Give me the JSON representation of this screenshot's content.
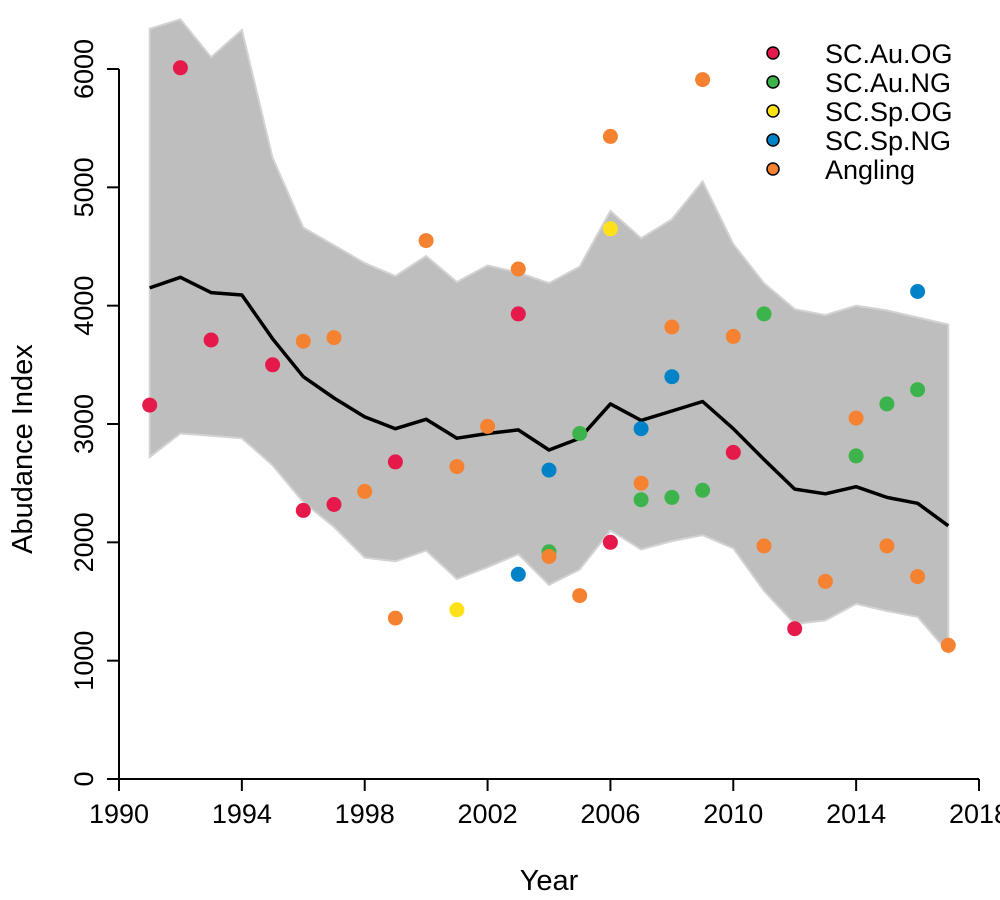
{
  "chart_data": {
    "type": "line",
    "title": "",
    "xlabel": "Year",
    "ylabel": "Abudance Index",
    "xlim": [
      1990,
      2018
    ],
    "ylim": [
      0,
      6000
    ],
    "x_ticks": [
      1990,
      1994,
      1998,
      2002,
      2006,
      2010,
      2014,
      2018
    ],
    "y_ticks": [
      0,
      1000,
      2000,
      3000,
      4000,
      5000,
      6000
    ],
    "grid": false,
    "legend_position": "top-right",
    "trend": {
      "x": [
        1991,
        1992,
        1993,
        1994,
        1995,
        1996,
        1997,
        1998,
        1999,
        2000,
        2001,
        2002,
        2003,
        2004,
        2005,
        2006,
        2007,
        2008,
        2009,
        2010,
        2011,
        2012,
        2013,
        2014,
        2015,
        2016,
        2017
      ],
      "y": [
        4150,
        4240,
        4110,
        4090,
        3720,
        3400,
        3220,
        3060,
        2960,
        3040,
        2880,
        2920,
        2950,
        2780,
        2880,
        3170,
        3030,
        3110,
        3190,
        2960,
        2700,
        2450,
        2410,
        2470,
        2380,
        2330,
        2140
      ],
      "color": "#000000"
    },
    "band": {
      "x": [
        1991,
        1992,
        1993,
        1994,
        1995,
        1996,
        1997,
        1998,
        1999,
        2000,
        2001,
        2002,
        2003,
        2004,
        2005,
        2006,
        2007,
        2008,
        2009,
        2010,
        2011,
        2012,
        2013,
        2014,
        2015,
        2016,
        2017
      ],
      "upper": [
        6340,
        6420,
        6100,
        6330,
        5250,
        4660,
        4510,
        4360,
        4250,
        4420,
        4200,
        4340,
        4280,
        4190,
        4330,
        4800,
        4570,
        4730,
        5050,
        4520,
        4190,
        3970,
        3920,
        4000,
        3960,
        3900,
        3840
      ],
      "lower": [
        2720,
        2920,
        2900,
        2880,
        2650,
        2340,
        2130,
        1870,
        1840,
        1930,
        1690,
        1790,
        1900,
        1640,
        1770,
        2100,
        1940,
        2010,
        2060,
        1950,
        1590,
        1310,
        1340,
        1480,
        1420,
        1370,
        1070
      ],
      "color": "#bebebe"
    },
    "series": [
      {
        "name": "SC.Au.OG",
        "color": "#e6194b",
        "points": [
          [
            1991,
            3160
          ],
          [
            1992,
            6010
          ],
          [
            1993,
            3710
          ],
          [
            1995,
            3500
          ],
          [
            1996,
            2270
          ],
          [
            1997,
            2320
          ],
          [
            1999,
            2680
          ],
          [
            2003,
            3930
          ],
          [
            2006,
            2000
          ],
          [
            2010,
            2760
          ],
          [
            2012,
            1270
          ]
        ]
      },
      {
        "name": "SC.Au.NG",
        "color": "#3cb44b",
        "points": [
          [
            2004,
            1920
          ],
          [
            2005,
            2920
          ],
          [
            2007,
            2360
          ],
          [
            2008,
            2380
          ],
          [
            2009,
            2440
          ],
          [
            2011,
            3930
          ],
          [
            2014,
            2730
          ],
          [
            2015,
            3170
          ],
          [
            2016,
            3290
          ]
        ]
      },
      {
        "name": "SC.Sp.OG",
        "color": "#ffe119",
        "points": [
          [
            2001,
            1430
          ],
          [
            2006,
            4650
          ]
        ]
      },
      {
        "name": "SC.Sp.NG",
        "color": "#0082c8",
        "points": [
          [
            2003,
            1730
          ],
          [
            2004,
            2610
          ],
          [
            2007,
            2960
          ],
          [
            2008,
            3400
          ],
          [
            2016,
            4120
          ]
        ]
      },
      {
        "name": "Angling",
        "color": "#f58231",
        "points": [
          [
            1996,
            3700
          ],
          [
            1997,
            3730
          ],
          [
            1998,
            2430
          ],
          [
            1999,
            1360
          ],
          [
            2000,
            4550
          ],
          [
            2001,
            2640
          ],
          [
            2002,
            2980
          ],
          [
            2003,
            4310
          ],
          [
            2004,
            1880
          ],
          [
            2005,
            1550
          ],
          [
            2006,
            5430
          ],
          [
            2007,
            2500
          ],
          [
            2008,
            3820
          ],
          [
            2009,
            5910
          ],
          [
            2010,
            3740
          ],
          [
            2011,
            1970
          ],
          [
            2013,
            1670
          ],
          [
            2014,
            3050
          ],
          [
            2015,
            1970
          ],
          [
            2016,
            1710
          ],
          [
            2017,
            1130
          ]
        ]
      }
    ]
  }
}
